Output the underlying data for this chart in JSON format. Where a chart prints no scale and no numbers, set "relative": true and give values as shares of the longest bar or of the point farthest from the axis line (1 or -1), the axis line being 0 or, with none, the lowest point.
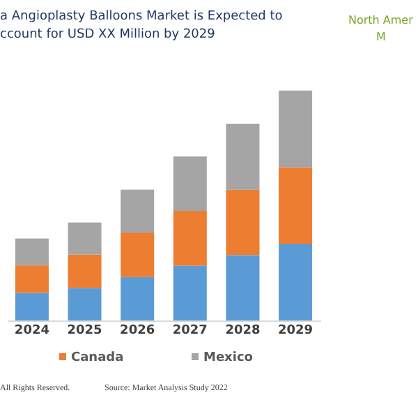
{
  "chart_data": {
    "type": "bar",
    "stacked": true,
    "relative": true,
    "title": "a Angioplasty Balloons Market is Expected to ccount for USD XX Million by 2029",
    "categories": [
      "2024",
      "2025",
      "2026",
      "2027",
      "2028",
      "2029"
    ],
    "series": [
      {
        "color": "#5b9bd5",
        "values": [
          0.12,
          0.142,
          0.189,
          0.238,
          0.284,
          0.333
        ]
      },
      {
        "name": "Canada",
        "color": "#ed7d31",
        "values": [
          0.12,
          0.144,
          0.193,
          0.238,
          0.284,
          0.333
        ]
      },
      {
        "name": "Mexico",
        "color": "#a5a5a5",
        "values": [
          0.116,
          0.14,
          0.187,
          0.238,
          0.287,
          0.334
        ]
      }
    ],
    "legend": "bottom",
    "grid": false,
    "annotations": [
      "North Amer",
      "M",
      "All Rights Reserved.",
      "Source: Market Analysis Study 2022"
    ]
  }
}
